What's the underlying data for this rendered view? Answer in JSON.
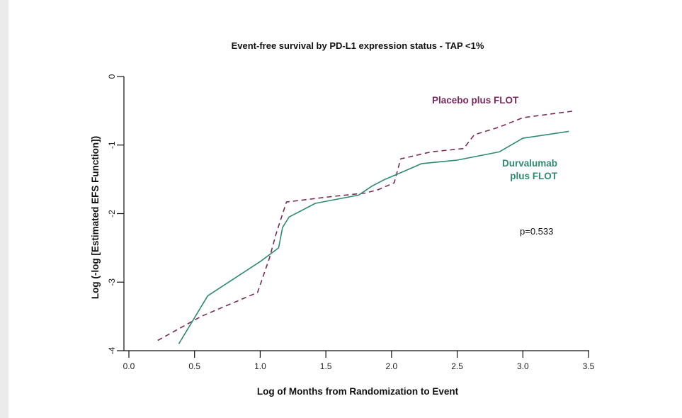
{
  "chart_data": {
    "type": "line",
    "title": "Event-free survival by PD-L1 expression status - TAP <1%",
    "xlabel": "Log of Months from Randomization to Event",
    "ylabel": "Log (-log [Estimated EFS Function])",
    "xlim": [
      0,
      3.5
    ],
    "ylim": [
      -4,
      0
    ],
    "x_ticks": [
      0.0,
      0.5,
      1.0,
      1.5,
      2.0,
      2.5,
      3.0,
      3.5
    ],
    "x_tick_labels": [
      "0.0",
      "0.5",
      "1.0",
      "1.5",
      "2.0",
      "2.5",
      "3.0",
      "3.5"
    ],
    "y_ticks": [
      0,
      -1,
      -2,
      -3,
      -4
    ],
    "y_tick_labels": [
      "0",
      "-1",
      "-2",
      "-3",
      "-4"
    ],
    "grid": false,
    "series": [
      {
        "name": "Placebo plus FLOT",
        "color": "#7a2a5a",
        "style": "dashed",
        "x": [
          0.22,
          0.55,
          0.98,
          1.07,
          1.12,
          1.2,
          1.55,
          1.8,
          1.9,
          2.02,
          2.07,
          2.12,
          2.3,
          2.55,
          2.63,
          2.8,
          2.87,
          3.0,
          3.2,
          3.4
        ],
        "y": [
          -3.85,
          -3.5,
          -3.15,
          -2.65,
          -2.3,
          -1.83,
          -1.75,
          -1.7,
          -1.65,
          -1.55,
          -1.2,
          -1.18,
          -1.1,
          -1.05,
          -0.85,
          -0.75,
          -0.7,
          -0.6,
          -0.55,
          -0.5
        ]
      },
      {
        "name": "Durvalumab plus FLOT",
        "color": "#2e8b6e",
        "style": "solid",
        "x": [
          0.38,
          0.6,
          1.0,
          1.14,
          1.17,
          1.22,
          1.42,
          1.75,
          1.85,
          1.95,
          2.05,
          2.23,
          2.5,
          2.82,
          3.0,
          3.35
        ],
        "y": [
          -3.9,
          -3.2,
          -2.7,
          -2.5,
          -2.2,
          -2.05,
          -1.85,
          -1.73,
          -1.6,
          -1.5,
          -1.42,
          -1.27,
          -1.22,
          -1.1,
          -0.9,
          -0.8
        ]
      }
    ],
    "annotations": {
      "placebo_label": "Placebo plus FLOT",
      "durvalumab_label_line1": "Durvalumab",
      "durvalumab_label_line2": "plus FLOT",
      "p_value": "p=0.533"
    }
  }
}
